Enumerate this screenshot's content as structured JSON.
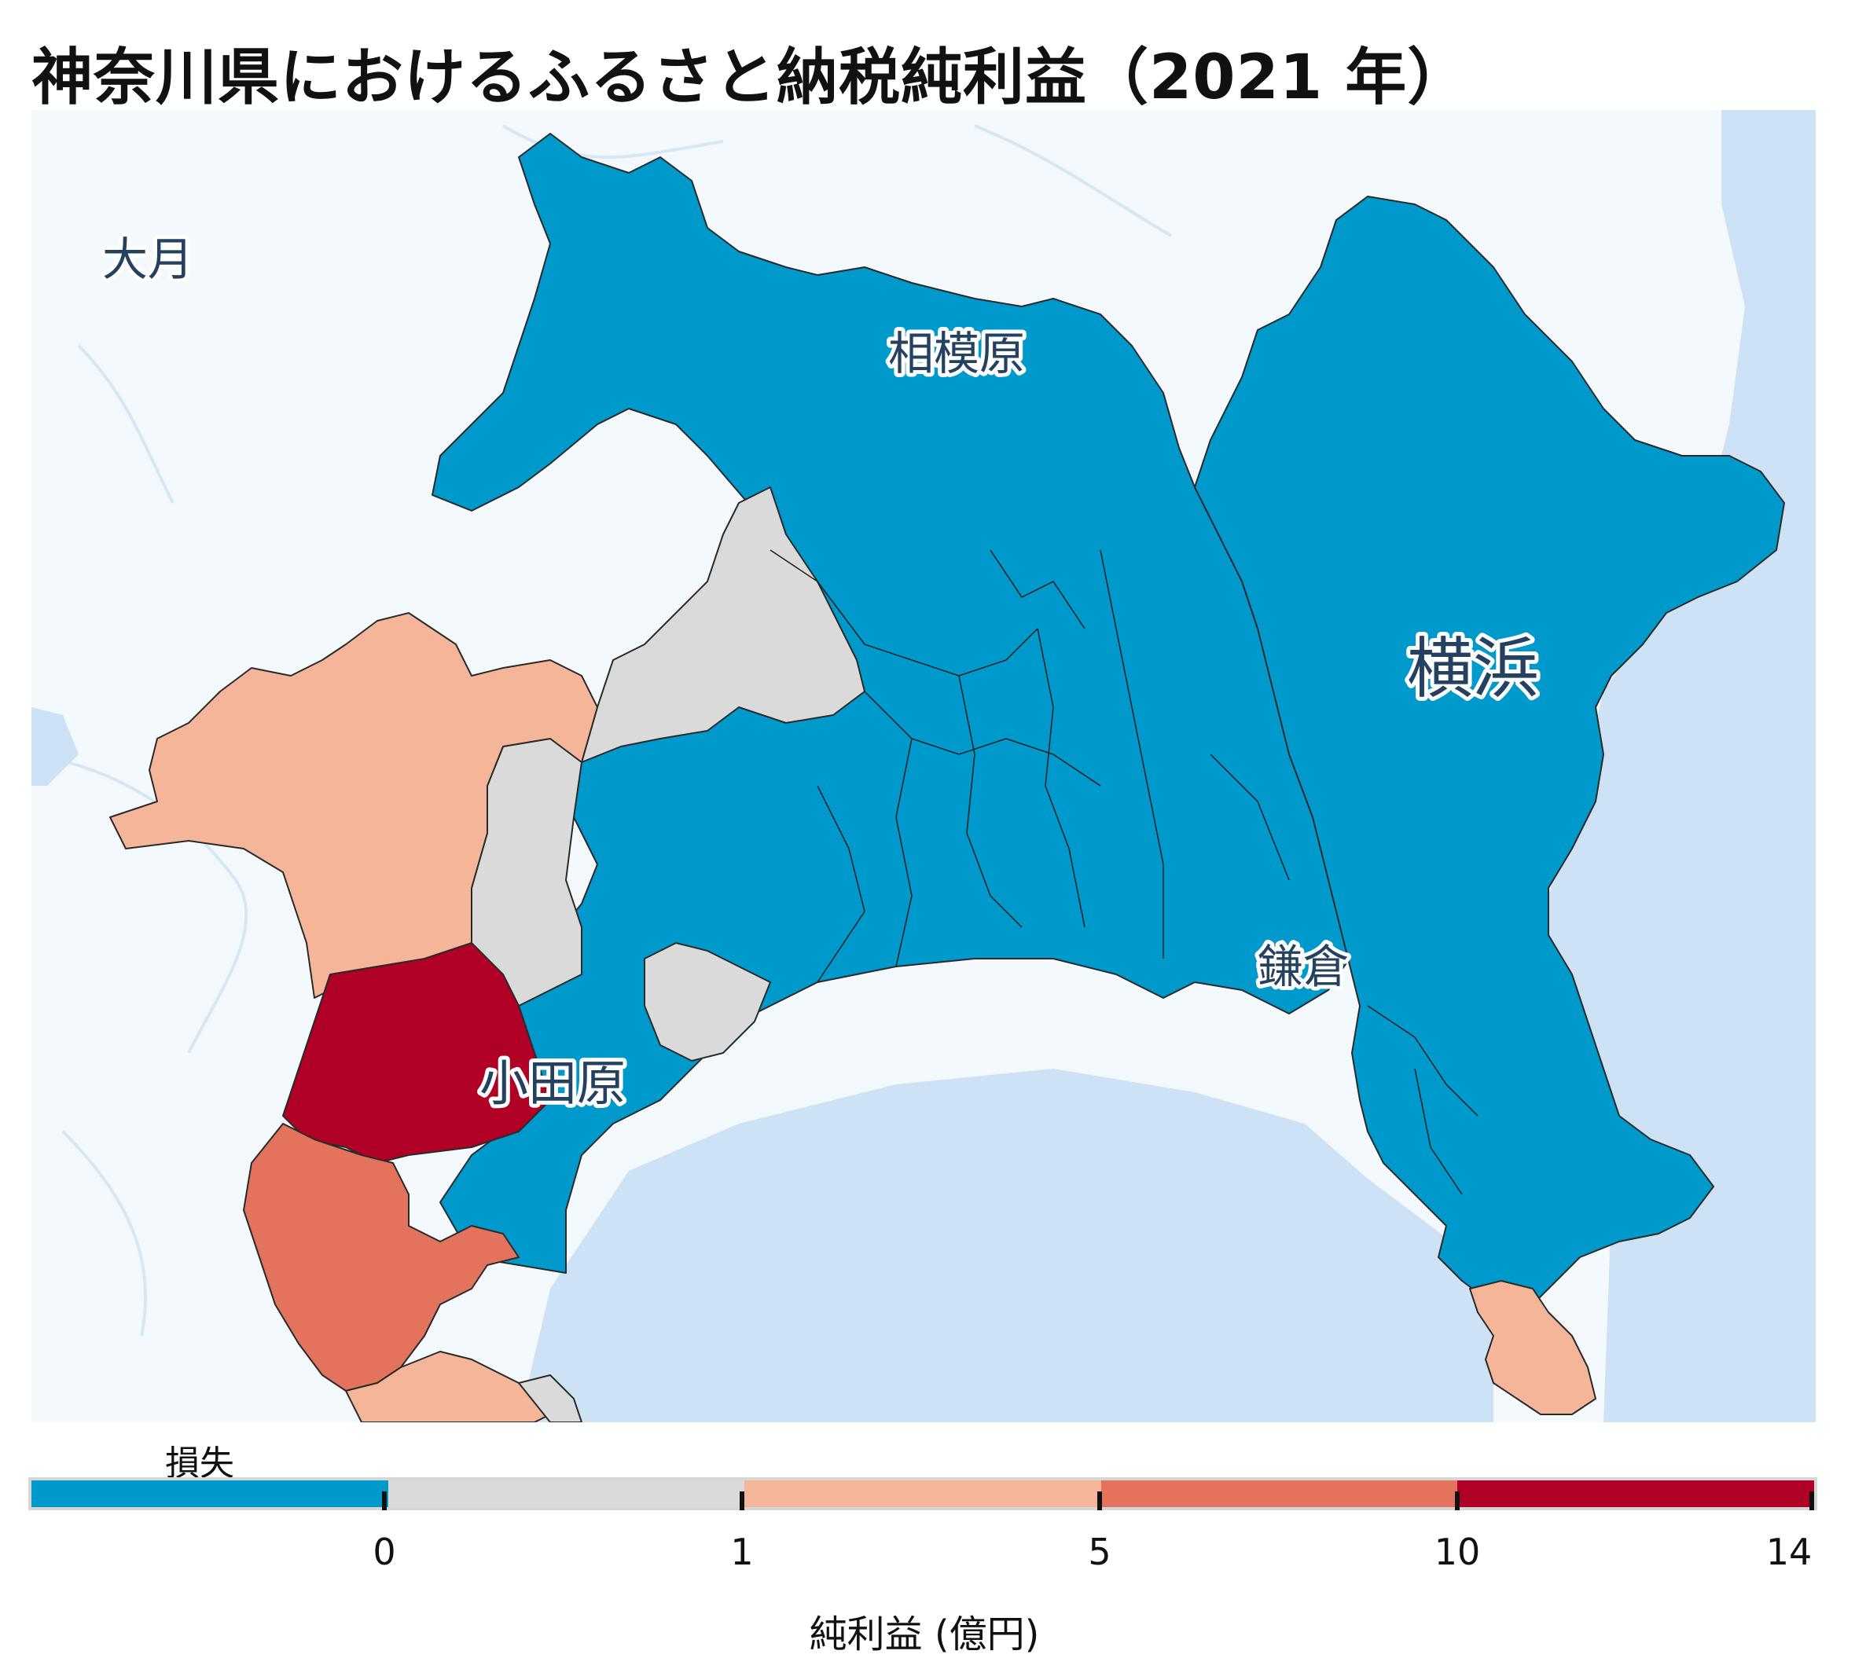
{
  "title": "神奈川県におけるふるさと納税純利益（2021 年）",
  "map": {
    "place_labels": {
      "otsuki": "大月",
      "sagamihara": "相模原",
      "yokohama": "横浜",
      "kamakura": "鎌倉",
      "odawara": "小田原"
    },
    "colors": {
      "water": "#cde2f4",
      "land_bg": "#f4f9fd",
      "loss": "#0099cc",
      "zero_to_1": "#dadada",
      "one_to_5": "#f5b599",
      "five_to_10": "#e4735e",
      "ten_to_14": "#b10026",
      "border": "#2a2a2a"
    }
  },
  "legend": {
    "loss_label": "損失",
    "axis_title": "純利益 (億円)",
    "ticks": [
      "0",
      "1",
      "5",
      "10",
      "14"
    ],
    "bins": [
      {
        "label": "損失",
        "color": "#0099cc"
      },
      {
        "range": "0–1",
        "color": "#dadada"
      },
      {
        "range": "1–5",
        "color": "#f5b599"
      },
      {
        "range": "5–10",
        "color": "#e4735e"
      },
      {
        "range": "10–14",
        "color": "#b10026"
      }
    ]
  }
}
